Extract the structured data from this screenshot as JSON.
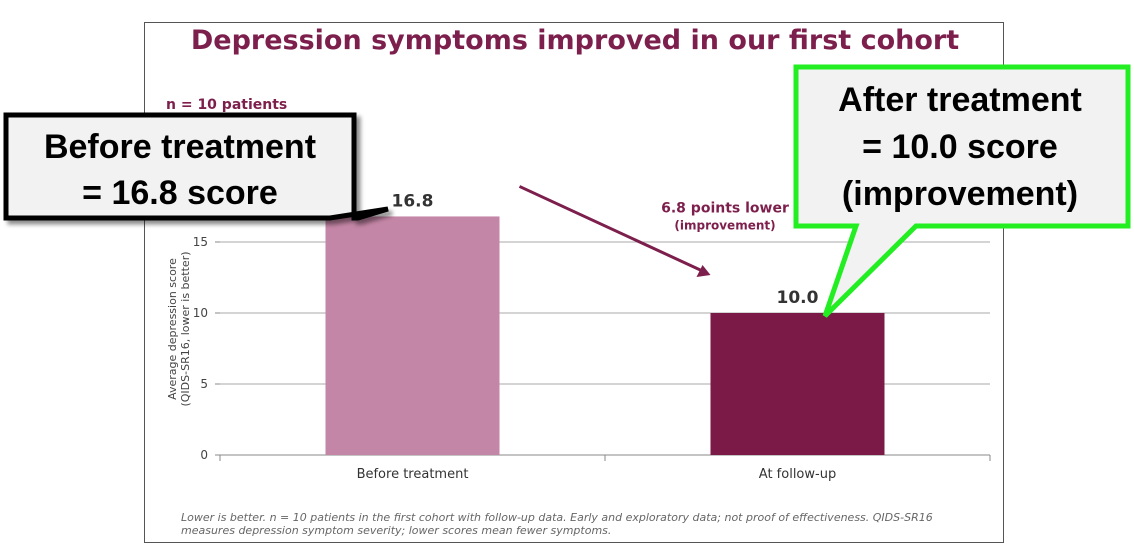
{
  "title": "Depression symptoms improved in our first cohort",
  "subtitle": "n = 10 patients",
  "ylabel_lines": [
    "Average depression score",
    "(QIDS-SR16, lower is better)"
  ],
  "footnote_lines": [
    "Lower is better. n = 10 patients in the first cohort with follow-up data. Early and exploratory data; not proof of effectiveness. QIDS-SR16",
    "measures depression symptom severity; lower scores mean fewer symptoms."
  ],
  "annotation": {
    "line1": "6.8 points lower",
    "line2": "(improvement)"
  },
  "callouts": {
    "left": [
      "Before treatment",
      "= 16.8 score"
    ],
    "right": [
      "After treatment",
      "= 10.0 score",
      "(improvement)"
    ]
  },
  "colors": {
    "accent": "#7d1f4c",
    "bar_before": "#c486a6",
    "bar_after": "#7b1a47",
    "callout_green": "#22ee22"
  },
  "chart_data": {
    "type": "bar",
    "title": "Depression symptoms improved in our first cohort",
    "categories": [
      "Before treatment",
      "At follow-up"
    ],
    "values": [
      16.8,
      10.0
    ],
    "value_labels": [
      "16.8",
      "10.0"
    ],
    "ylabel": "Average depression score (QIDS-SR16, lower is better)",
    "ylim": [
      0,
      20
    ],
    "yticks": [
      0,
      5,
      10,
      15
    ],
    "grid": true
  }
}
